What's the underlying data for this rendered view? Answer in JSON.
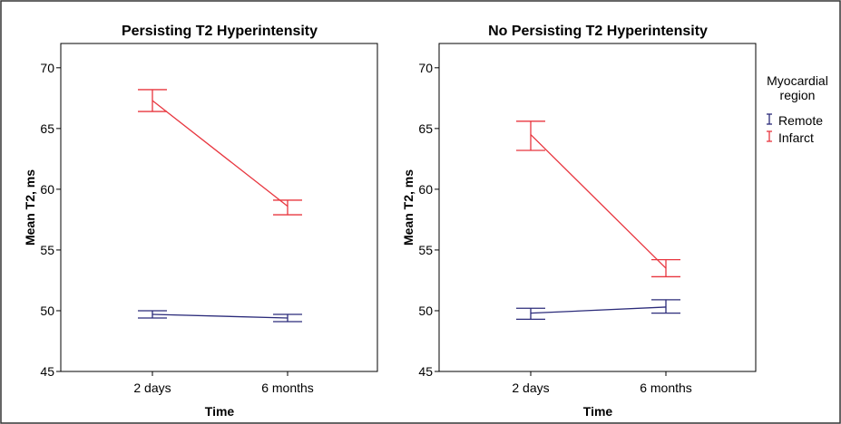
{
  "legend": {
    "title_line1": "Myocardial",
    "title_line2": "region",
    "entries": [
      {
        "label": "Remote",
        "color": "#2b2b7a"
      },
      {
        "label": "Infarct",
        "color": "#e8363f"
      }
    ]
  },
  "chart_data": [
    {
      "type": "line",
      "title": "Persisting T2 Hyperintensity",
      "xlabel": "Time",
      "ylabel": "Mean T2, ms",
      "categories": [
        "2 days",
        "6 months"
      ],
      "ylim": [
        45,
        72
      ],
      "yticks": [
        45,
        50,
        55,
        60,
        65,
        70
      ],
      "grid": false,
      "series": [
        {
          "name": "Remote",
          "color": "#2b2b7a",
          "values": [
            49.7,
            49.4
          ],
          "err_low": [
            49.4,
            49.1
          ],
          "err_high": [
            50.0,
            49.7
          ]
        },
        {
          "name": "Infarct",
          "color": "#e8363f",
          "values": [
            67.3,
            58.6
          ],
          "err_low": [
            66.4,
            57.9
          ],
          "err_high": [
            68.2,
            59.1
          ]
        }
      ]
    },
    {
      "type": "line",
      "title": "No Persisting T2 Hyperintensity",
      "xlabel": "Time",
      "ylabel": "Mean T2, ms",
      "categories": [
        "2 days",
        "6 months"
      ],
      "ylim": [
        45,
        72
      ],
      "yticks": [
        45,
        50,
        55,
        60,
        65,
        70
      ],
      "grid": false,
      "series": [
        {
          "name": "Remote",
          "color": "#2b2b7a",
          "values": [
            49.8,
            50.3
          ],
          "err_low": [
            49.3,
            49.8
          ],
          "err_high": [
            50.2,
            50.9
          ]
        },
        {
          "name": "Infarct",
          "color": "#e8363f",
          "values": [
            64.5,
            53.5
          ],
          "err_low": [
            63.2,
            52.8
          ],
          "err_high": [
            65.6,
            54.2
          ]
        }
      ]
    }
  ]
}
